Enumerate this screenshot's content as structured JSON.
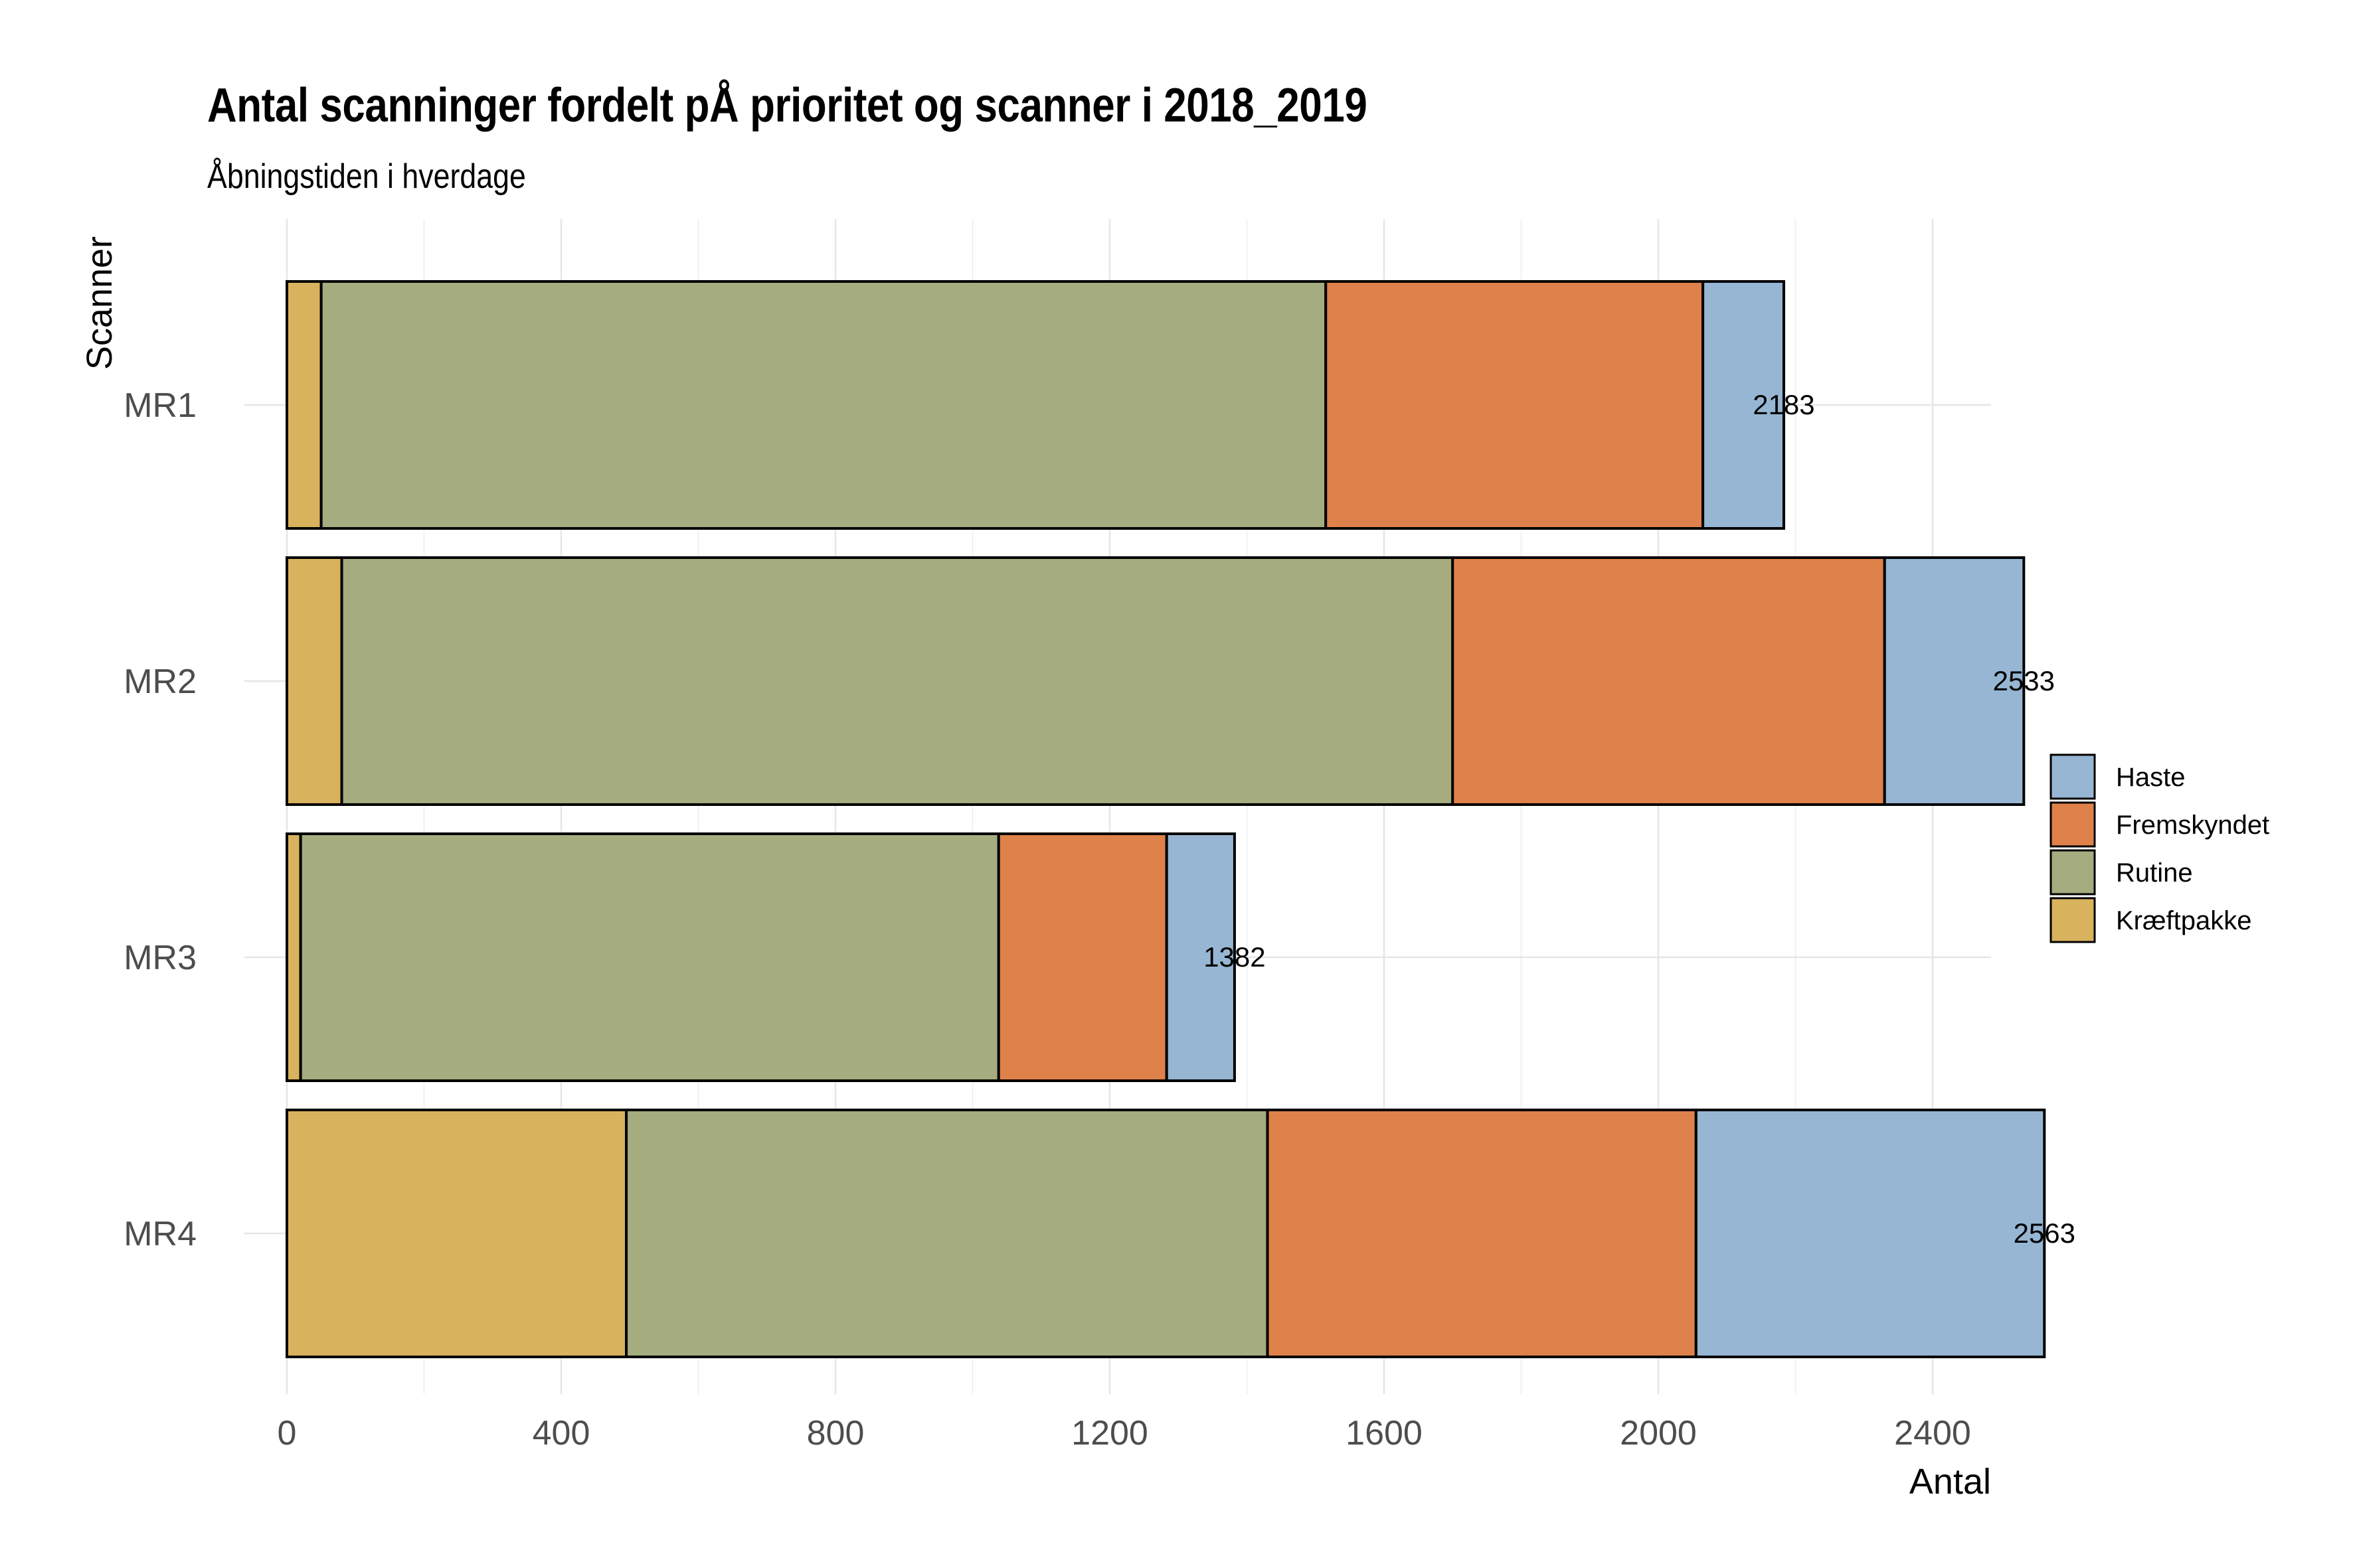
{
  "chart_data": {
    "type": "bar",
    "orientation": "horizontal",
    "stacked": true,
    "title": "Antal scanninger fordelt pÅ prioritet og scanner i 2018_2019",
    "subtitle": "Åbningstiden i hverdage",
    "xlabel": "Antal",
    "ylabel": "Scanner",
    "categories": [
      "MR1",
      "MR2",
      "MR3",
      "MR4"
    ],
    "xlim": [
      0,
      2700
    ],
    "xticks": [
      0,
      400,
      800,
      1200,
      1600,
      2000,
      2400
    ],
    "grid": true,
    "legend_position": "right",
    "series": [
      {
        "name": "Kræftpakke",
        "color": "#D9B25E",
        "values": [
          50,
          80,
          20,
          495
        ]
      },
      {
        "name": "Rutine",
        "color": "#A4AC80",
        "values": [
          1465,
          1620,
          1018,
          935
        ]
      },
      {
        "name": "Fremskyndet",
        "color": "#DE814A",
        "values": [
          550,
          630,
          245,
          625
        ]
      },
      {
        "name": "Haste",
        "color": "#96B6D3",
        "values": [
          118,
          203,
          99,
          508
        ]
      }
    ],
    "totals": [
      2183,
      2533,
      1382,
      2563
    ],
    "legend_order": [
      "Haste",
      "Fremskyndet",
      "Rutine",
      "Kræftpakke"
    ]
  }
}
